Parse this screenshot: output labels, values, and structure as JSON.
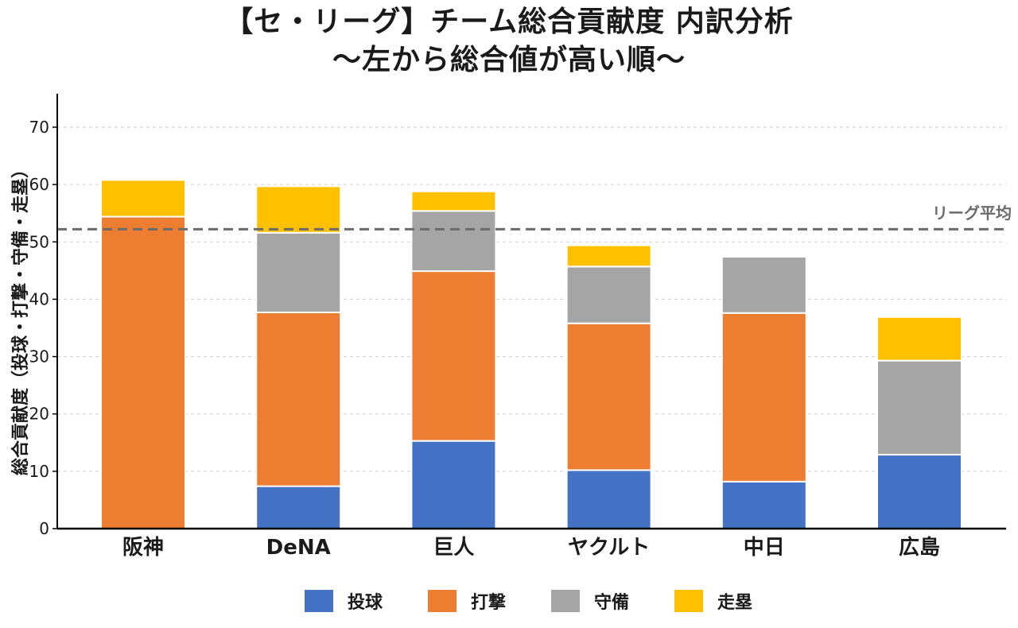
{
  "title_line1": "【セ・リーグ】チーム総合貢献度 内訳分析",
  "title_line2": "〜左から総合値が高い順〜",
  "chart_data": {
    "type": "bar",
    "stacked": true,
    "title": "【セ・リーグ】チーム総合貢献度 内訳分析 〜左から総合値が高い順〜",
    "xlabel": "",
    "ylabel": "総合貢献度（投球・打撃・守備・走塁）",
    "ylim": [
      0,
      76
    ],
    "yticks": [
      0,
      10,
      20,
      30,
      40,
      50,
      60,
      70
    ],
    "grid": true,
    "categories": [
      "阪神",
      "DeNA",
      "巨人",
      "ヤクルト",
      "中日",
      "広島"
    ],
    "series": [
      {
        "name": "投球",
        "color": "#4472C4",
        "values": [
          0,
          7.4,
          15.3,
          10.2,
          8.2,
          12.9
        ]
      },
      {
        "name": "打撃",
        "color": "#ED7D31",
        "values": [
          54.4,
          30.3,
          29.6,
          25.6,
          29.4,
          0
        ]
      },
      {
        "name": "守備",
        "color": "#A5A5A5",
        "values": [
          0,
          13.9,
          10.5,
          9.9,
          9.8,
          16.4
        ]
      },
      {
        "name": "走塁",
        "color": "#FFC000",
        "values": [
          6.4,
          8.1,
          3.4,
          3.7,
          0,
          7.6
        ]
      }
    ],
    "reference_line": {
      "label": "リーグ平均",
      "value": 52.2,
      "color": "#6b6b6b"
    },
    "legend_position": "bottom"
  }
}
